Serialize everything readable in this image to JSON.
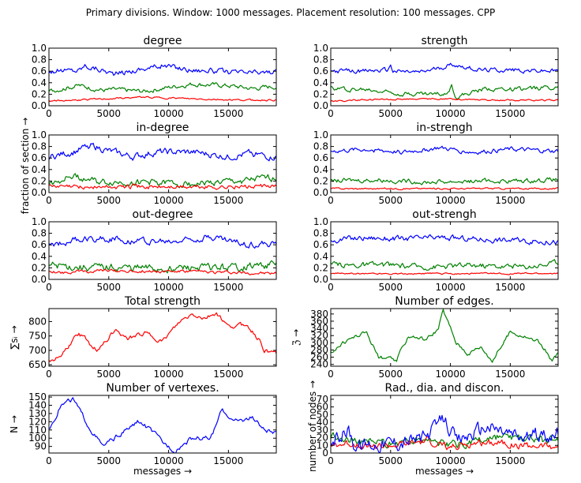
{
  "suptitle": "Primary divisions. Window: 1000 messages. Placement resolution: 100 messages. CPP",
  "figure_labels": {
    "fraction_ylabel": "fraction of section →",
    "nodes_ylabel": "number of nodes →",
    "messages_xlabel": "messages →"
  },
  "colors": {
    "blue": "#0000ff",
    "green": "#008000",
    "red": "#ff0000"
  },
  "chart_data": [
    {
      "id": "degree",
      "type": "line",
      "title": "degree",
      "xlim": [
        0,
        19000
      ],
      "ylim": [
        0,
        1.0
      ],
      "xticks": [
        0,
        5000,
        10000,
        15000
      ],
      "xtick_labels": [
        "0",
        "5000",
        "10000",
        "15000"
      ],
      "yticks": [
        0,
        0.2,
        0.4,
        0.6,
        0.8,
        1.0
      ],
      "ytick_labels": [
        "0.0",
        "0.2",
        "0.4",
        "0.6",
        "0.8",
        "1.0"
      ],
      "ylabel": "",
      "xlabel": "",
      "series": [
        {
          "color": "blue",
          "base": 0.6,
          "amp": 0.05,
          "x": [
            0,
            2500,
            3000,
            4500,
            5500,
            7500,
            9500,
            12000,
            13000,
            15500,
            18500
          ],
          "y": [
            0.6,
            0.62,
            0.7,
            0.62,
            0.55,
            0.63,
            0.7,
            0.62,
            0.62,
            0.57,
            0.58
          ]
        },
        {
          "color": "green",
          "base": 0.3,
          "amp": 0.04,
          "x": [
            0,
            2500,
            4500,
            5500,
            8000,
            10000,
            12000,
            15000,
            17000,
            18500
          ],
          "y": [
            0.25,
            0.35,
            0.27,
            0.28,
            0.25,
            0.32,
            0.38,
            0.35,
            0.3,
            0.33
          ]
        },
        {
          "color": "red",
          "base": 0.1,
          "amp": 0.015,
          "x": [
            0,
            6000,
            8000,
            12000,
            16000,
            18500
          ],
          "y": [
            0.08,
            0.13,
            0.15,
            0.12,
            0.1,
            0.1
          ]
        }
      ]
    },
    {
      "id": "strength",
      "type": "line",
      "title": "strength",
      "xlim": [
        0,
        19000
      ],
      "ylim": [
        0,
        1.0
      ],
      "xticks": [
        0,
        5000,
        10000,
        15000
      ],
      "xtick_labels": [
        "0",
        "5000",
        "10000",
        "15000"
      ],
      "yticks": [
        0,
        0.2,
        0.4,
        0.6,
        0.8,
        1.0
      ],
      "ytick_labels": [
        "0.0",
        "0.2",
        "0.4",
        "0.6",
        "0.8",
        "1.0"
      ],
      "ylabel": "",
      "xlabel": "",
      "series": [
        {
          "color": "blue",
          "base": 0.6,
          "amp": 0.04,
          "x": [
            0,
            2500,
            4800,
            5000,
            5200,
            7500,
            10200,
            12500,
            15000,
            18500
          ],
          "y": [
            0.6,
            0.6,
            0.62,
            0.72,
            0.6,
            0.58,
            0.72,
            0.62,
            0.62,
            0.6
          ]
        },
        {
          "color": "green",
          "base": 0.3,
          "amp": 0.04,
          "x": [
            0,
            3000,
            6000,
            9500,
            10100,
            10500,
            13000,
            16000,
            18500
          ],
          "y": [
            0.3,
            0.28,
            0.22,
            0.2,
            0.35,
            0.15,
            0.3,
            0.28,
            0.33
          ]
        },
        {
          "color": "red",
          "base": 0.1,
          "amp": 0.015,
          "x": [
            0,
            3000,
            7000,
            10000,
            14000,
            18500
          ],
          "y": [
            0.08,
            0.1,
            0.12,
            0.12,
            0.1,
            0.1
          ]
        }
      ]
    },
    {
      "id": "in-degree",
      "type": "line",
      "title": "in-degree",
      "xlim": [
        0,
        19000
      ],
      "ylim": [
        0,
        1.0
      ],
      "xticks": [
        0,
        5000,
        10000,
        15000
      ],
      "xtick_labels": [
        "0",
        "5000",
        "10000",
        "15000"
      ],
      "yticks": [
        0,
        0.2,
        0.4,
        0.6,
        0.8,
        1.0
      ],
      "ytick_labels": [
        "0.0",
        "0.2",
        "0.4",
        "0.6",
        "0.8",
        "1.0"
      ],
      "ylabel": "",
      "xlabel": "",
      "series": [
        {
          "color": "blue",
          "base": 0.68,
          "amp": 0.06,
          "x": [
            0,
            2000,
            3500,
            5000,
            7000,
            9000,
            12000,
            15000,
            17000,
            18500
          ],
          "y": [
            0.62,
            0.7,
            0.82,
            0.72,
            0.62,
            0.7,
            0.7,
            0.62,
            0.68,
            0.62
          ]
        },
        {
          "color": "green",
          "base": 0.18,
          "amp": 0.06,
          "x": [
            0,
            2000,
            4000,
            8000,
            12000,
            16000,
            18500
          ],
          "y": [
            0.15,
            0.3,
            0.18,
            0.18,
            0.15,
            0.2,
            0.25
          ]
        },
        {
          "color": "red",
          "base": 0.1,
          "amp": 0.04,
          "x": [
            0,
            5000,
            10000,
            15000,
            18500
          ],
          "y": [
            0.1,
            0.1,
            0.1,
            0.1,
            0.1
          ]
        }
      ]
    },
    {
      "id": "in-strengh",
      "type": "line",
      "title": "in-strengh",
      "xlim": [
        0,
        19000
      ],
      "ylim": [
        0,
        1.0
      ],
      "xticks": [
        0,
        5000,
        10000,
        15000
      ],
      "xtick_labels": [
        "0",
        "5000",
        "10000",
        "15000"
      ],
      "yticks": [
        0,
        0.2,
        0.4,
        0.6,
        0.8,
        1.0
      ],
      "ytick_labels": [
        "0.0",
        "0.2",
        "0.4",
        "0.6",
        "0.8",
        "1.0"
      ],
      "ylabel": "",
      "xlabel": "",
      "series": [
        {
          "color": "blue",
          "base": 0.72,
          "amp": 0.04,
          "x": [
            0,
            3000,
            6000,
            9000,
            12000,
            15000,
            18500
          ],
          "y": [
            0.72,
            0.75,
            0.7,
            0.78,
            0.7,
            0.75,
            0.72
          ]
        },
        {
          "color": "green",
          "base": 0.2,
          "amp": 0.04,
          "x": [
            0,
            4000,
            8000,
            12000,
            16000,
            18500
          ],
          "y": [
            0.2,
            0.22,
            0.18,
            0.2,
            0.2,
            0.22
          ]
        },
        {
          "color": "red",
          "base": 0.07,
          "amp": 0.015,
          "x": [
            0,
            6000,
            12000,
            18500
          ],
          "y": [
            0.07,
            0.07,
            0.07,
            0.07
          ]
        }
      ]
    },
    {
      "id": "out-degree",
      "type": "line",
      "title": "out-degree",
      "xlim": [
        0,
        19000
      ],
      "ylim": [
        0,
        1.0
      ],
      "xticks": [
        0,
        5000,
        10000,
        15000
      ],
      "xtick_labels": [
        "0",
        "5000",
        "10000",
        "15000"
      ],
      "yticks": [
        0,
        0.2,
        0.4,
        0.6,
        0.8,
        1.0
      ],
      "ytick_labels": [
        "0.0",
        "0.2",
        "0.4",
        "0.6",
        "0.8",
        "1.0"
      ],
      "ylabel": "",
      "xlabel": "",
      "series": [
        {
          "color": "blue",
          "base": 0.65,
          "amp": 0.06,
          "x": [
            0,
            2000,
            4000,
            7000,
            10000,
            13500,
            16000,
            18500
          ],
          "y": [
            0.58,
            0.68,
            0.72,
            0.68,
            0.65,
            0.75,
            0.62,
            0.6
          ]
        },
        {
          "color": "green",
          "base": 0.2,
          "amp": 0.07,
          "x": [
            0,
            3000,
            6000,
            9000,
            12000,
            15000,
            18500
          ],
          "y": [
            0.25,
            0.2,
            0.2,
            0.18,
            0.2,
            0.2,
            0.25
          ]
        },
        {
          "color": "red",
          "base": 0.12,
          "amp": 0.03,
          "x": [
            0,
            5000,
            10000,
            15000,
            18500
          ],
          "y": [
            0.12,
            0.15,
            0.14,
            0.12,
            0.1
          ]
        }
      ]
    },
    {
      "id": "out-strengh",
      "type": "line",
      "title": "out-strengh",
      "xlim": [
        0,
        19000
      ],
      "ylim": [
        0,
        1.0
      ],
      "xticks": [
        0,
        5000,
        10000,
        15000
      ],
      "xtick_labels": [
        "0",
        "5000",
        "10000",
        "15000"
      ],
      "yticks": [
        0,
        0.2,
        0.4,
        0.6,
        0.8,
        1.0
      ],
      "ytick_labels": [
        "0.0",
        "0.2",
        "0.4",
        "0.6",
        "0.8",
        "1.0"
      ],
      "ylabel": "",
      "xlabel": "",
      "series": [
        {
          "color": "blue",
          "base": 0.68,
          "amp": 0.05,
          "x": [
            0,
            3000,
            6000,
            9000,
            12000,
            15000,
            18500
          ],
          "y": [
            0.68,
            0.72,
            0.7,
            0.72,
            0.7,
            0.68,
            0.65
          ]
        },
        {
          "color": "green",
          "base": 0.25,
          "amp": 0.05,
          "x": [
            0,
            4000,
            8000,
            12000,
            16000,
            18500
          ],
          "y": [
            0.25,
            0.25,
            0.22,
            0.25,
            0.22,
            0.28
          ]
        },
        {
          "color": "red",
          "base": 0.1,
          "amp": 0.015,
          "x": [
            0,
            6000,
            12000,
            18500
          ],
          "y": [
            0.1,
            0.1,
            0.1,
            0.1
          ]
        }
      ]
    },
    {
      "id": "total-strength",
      "type": "line",
      "title": "Total strength",
      "xlim": [
        0,
        19000
      ],
      "ylim": [
        645,
        845
      ],
      "xticks": [
        0,
        5000,
        10000,
        15000
      ],
      "xtick_labels": [
        "0",
        "5000",
        "10000",
        "15000"
      ],
      "yticks": [
        650,
        700,
        750,
        800
      ],
      "ytick_labels": [
        "650",
        "700",
        "750",
        "800"
      ],
      "ylabel": "∑sᵢ →",
      "xlabel": "",
      "series": [
        {
          "color": "red",
          "base": 0,
          "amp": 8,
          "x": [
            0,
            1000,
            2500,
            3500,
            4000,
            5500,
            6500,
            8000,
            9500,
            11000,
            12000,
            13000,
            14000,
            15000,
            16500,
            17500,
            18000,
            19000
          ],
          "y": [
            660,
            680,
            760,
            720,
            700,
            770,
            740,
            760,
            730,
            800,
            825,
            810,
            830,
            780,
            790,
            740,
            700,
            690
          ]
        }
      ]
    },
    {
      "id": "number-of-edges",
      "type": "line",
      "title": "Number of edges.",
      "xlim": [
        0,
        19000
      ],
      "ylim": [
        235,
        395
      ],
      "xticks": [
        0,
        5000,
        10000,
        15000
      ],
      "xtick_labels": [
        "0",
        "5000",
        "10000",
        "15000"
      ],
      "yticks": [
        240,
        260,
        280,
        300,
        320,
        340,
        360,
        380
      ],
      "ytick_labels": [
        "240",
        "260",
        "280",
        "300",
        "320",
        "340",
        "360",
        "380"
      ],
      "ylabel": "ℨ →",
      "xlabel": "",
      "series": [
        {
          "color": "green",
          "base": 0,
          "amp": 6,
          "x": [
            0,
            1500,
            3000,
            4000,
            5500,
            6500,
            8000,
            9000,
            9400,
            10500,
            11500,
            12500,
            13500,
            15000,
            16000,
            17500,
            18500,
            19000
          ],
          "y": [
            275,
            310,
            330,
            260,
            250,
            320,
            310,
            340,
            390,
            300,
            270,
            290,
            250,
            330,
            320,
            300,
            250,
            270
          ]
        }
      ]
    },
    {
      "id": "number-of-vertexes",
      "type": "line",
      "title": "Number of vertexes.",
      "xlim": [
        0,
        19000
      ],
      "ylim": [
        82,
        152
      ],
      "xticks": [
        0,
        5000,
        10000,
        15000
      ],
      "xtick_labels": [
        "0",
        "5000",
        "10000",
        "15000"
      ],
      "yticks": [
        90,
        100,
        110,
        120,
        130,
        140,
        150
      ],
      "ytick_labels": [
        "90",
        "100",
        "110",
        "120",
        "130",
        "140",
        "150"
      ],
      "ylabel": "N →",
      "xlabel": "messages →",
      "series": [
        {
          "color": "blue",
          "base": 0,
          "amp": 3,
          "x": [
            0,
            1000,
            2000,
            3500,
            4500,
            5500,
            7500,
            8500,
            9500,
            10500,
            12000,
            13500,
            14500,
            15500,
            17000,
            18000,
            19000
          ],
          "y": [
            110,
            140,
            148,
            110,
            90,
            100,
            120,
            110,
            95,
            85,
            100,
            100,
            135,
            120,
            125,
            110,
            105
          ]
        }
      ]
    },
    {
      "id": "rad-dia-discon",
      "type": "line",
      "title": "Rad., dia. and discon.",
      "xlim": [
        0,
        19000
      ],
      "ylim": [
        0,
        75
      ],
      "xticks": [
        0,
        5000,
        10000,
        15000
      ],
      "xtick_labels": [
        "0",
        "5000",
        "10000",
        "15000"
      ],
      "yticks": [
        0,
        10,
        20,
        30,
        40,
        50,
        60,
        70
      ],
      "ytick_labels": [
        "0",
        "10",
        "20",
        "30",
        "40",
        "50",
        "60",
        "70"
      ],
      "ylabel": "",
      "xlabel": "messages →",
      "series": [
        {
          "color": "green",
          "base": 0,
          "amp": 6,
          "x": [
            0,
            2000,
            4000,
            6000,
            8000,
            10000,
            12000,
            14000,
            16000,
            18500
          ],
          "y": [
            20,
            18,
            12,
            15,
            20,
            10,
            15,
            20,
            18,
            15
          ]
        },
        {
          "color": "red",
          "base": 0,
          "amp": 5,
          "x": [
            0,
            2000,
            4000,
            6000,
            8000,
            10000,
            12000,
            14000,
            16000,
            18500
          ],
          "y": [
            10,
            12,
            8,
            10,
            15,
            8,
            12,
            15,
            10,
            8
          ]
        },
        {
          "color": "blue",
          "base": 0,
          "amp": 10,
          "x": [
            0,
            1500,
            2000,
            4000,
            6000,
            8000,
            9500,
            10500,
            13000,
            16000,
            18500
          ],
          "y": [
            15,
            30,
            10,
            12,
            15,
            20,
            45,
            15,
            35,
            20,
            25
          ]
        }
      ]
    }
  ]
}
